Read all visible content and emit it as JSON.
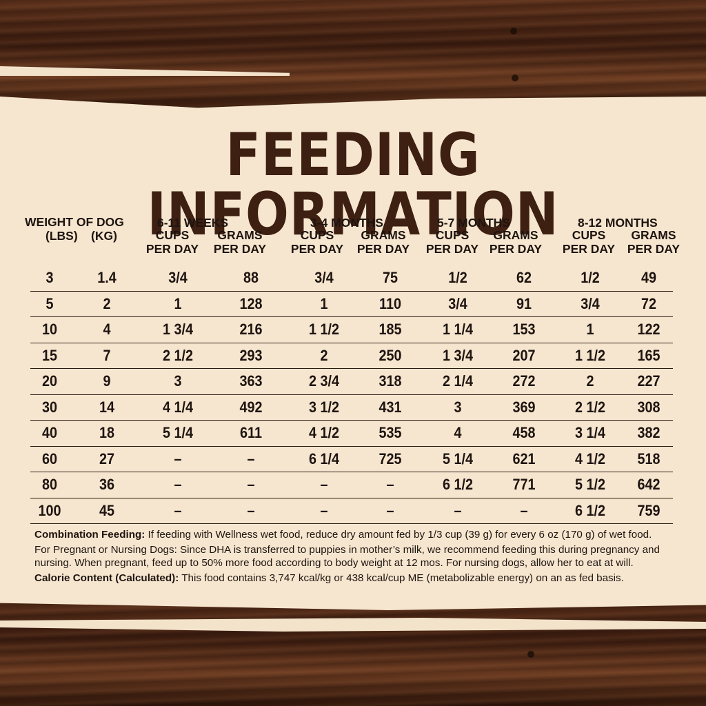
{
  "title": "FEEDING INFORMATION",
  "headers": {
    "weight": "WEIGHT OF DOG",
    "lbs": "(LBS)",
    "kg": "(KG)",
    "age_groups": [
      "6-11 WEEKS",
      "3-4 MONTHS",
      "5-7 MONTHS",
      "8-12 MONTHS"
    ],
    "cups": "CUPS",
    "grams": "GRAMS",
    "per_day": "PER DAY"
  },
  "rows": [
    [
      "3",
      "1.4",
      "3/4",
      "88",
      "3/4",
      "75",
      "1/2",
      "62",
      "1/2",
      "49"
    ],
    [
      "5",
      "2",
      "1",
      "128",
      "1",
      "110",
      "3/4",
      "91",
      "3/4",
      "72"
    ],
    [
      "10",
      "4",
      "1 3/4",
      "216",
      "1 1/2",
      "185",
      "1 1/4",
      "153",
      "1",
      "122"
    ],
    [
      "15",
      "7",
      "2 1/2",
      "293",
      "2",
      "250",
      "1 3/4",
      "207",
      "1 1/2",
      "165"
    ],
    [
      "20",
      "9",
      "3",
      "363",
      "2 3/4",
      "318",
      "2 1/4",
      "272",
      "2",
      "227"
    ],
    [
      "30",
      "14",
      "4 1/4",
      "492",
      "3 1/2",
      "431",
      "3",
      "369",
      "2 1/2",
      "308"
    ],
    [
      "40",
      "18",
      "5 1/4",
      "611",
      "4 1/2",
      "535",
      "4",
      "458",
      "3 1/4",
      "382"
    ],
    [
      "60",
      "27",
      "–",
      "–",
      "6 1/4",
      "725",
      "5 1/4",
      "621",
      "4 1/2",
      "518"
    ],
    [
      "80",
      "36",
      "–",
      "–",
      "–",
      "–",
      "6 1/2",
      "771",
      "5 1/2",
      "642"
    ],
    [
      "100",
      "45",
      "–",
      "–",
      "–",
      "–",
      "–",
      "–",
      "6 1/2",
      "759"
    ]
  ],
  "notes": {
    "combo_label": "Combination Feeding:",
    "combo_text": " If feeding with Wellness wet food, reduce dry amount fed by 1/3 cup (39 g) for every 6 oz (170 g) of wet food.",
    "pregnant_text": "For Pregnant or Nursing Dogs: Since DHA is transferred to puppies in mother’s milk, we recommend feeding this during pregnancy and nursing. When pregnant, feed up to 50% more food according to body weight at 12 mos. For nursing dogs, allow her to eat at will.",
    "calorie_label": "Calorie Content (Calculated):",
    "calorie_text": " This food contains 3,747 kcal/kg or 438 kcal/cup ME (metabolizable energy) on an as fed basis."
  },
  "colors": {
    "panel": "#f6e6cf",
    "title": "#3e2012",
    "text": "#1e1410",
    "wood": "#4a2616"
  }
}
